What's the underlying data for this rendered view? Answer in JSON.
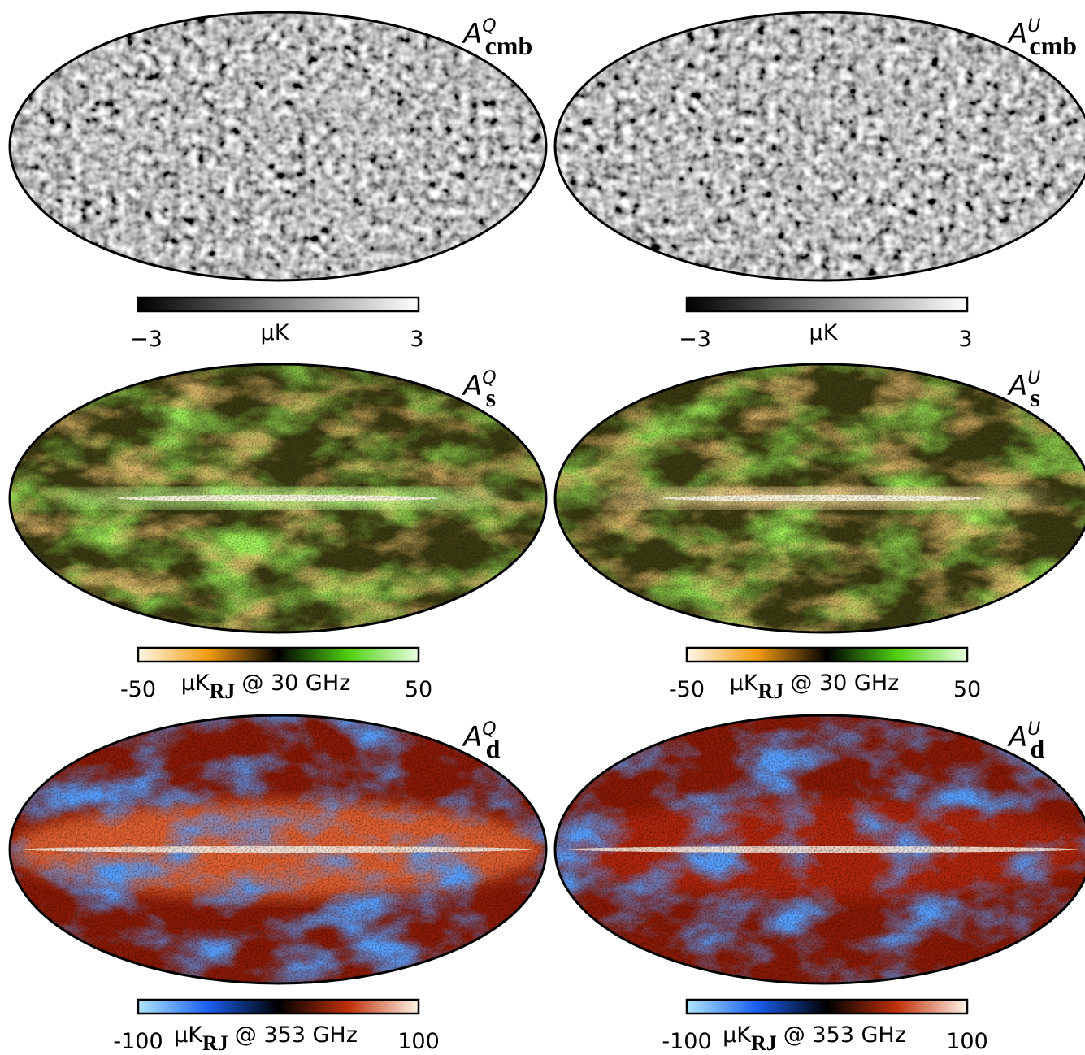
{
  "panels": [
    {
      "title": {
        "base": "A",
        "sup": "Q",
        "sub": "cmb"
      },
      "colorbar": {
        "min": "−3",
        "unit": "μK",
        "max": "3"
      }
    },
    {
      "title": {
        "base": "A",
        "sup": "U",
        "sub": "cmb"
      },
      "colorbar": {
        "min": "−3",
        "unit": "μK",
        "max": "3"
      }
    },
    {
      "title": {
        "base": "A",
        "sup": "Q",
        "sub": "s"
      },
      "colorbar": {
        "min": "-50",
        "unit": "μK",
        "unit_sub": "RJ",
        "unit_suffix": "@ 30 GHz",
        "max": "50"
      }
    },
    {
      "title": {
        "base": "A",
        "sup": "U",
        "sub": "s"
      },
      "colorbar": {
        "min": "-50",
        "unit": "μK",
        "unit_sub": "RJ",
        "unit_suffix": "@ 30 GHz",
        "max": "50"
      }
    },
    {
      "title": {
        "base": "A",
        "sup": "Q",
        "sub": "d"
      },
      "colorbar": {
        "min": "-100",
        "unit": "μK",
        "unit_sub": "RJ",
        "unit_suffix": "@ 353 GHz",
        "max": "100"
      }
    },
    {
      "title": {
        "base": "A",
        "sup": "U",
        "sub": "d"
      },
      "colorbar": {
        "min": "-100",
        "unit": "μK",
        "unit_sub": "RJ",
        "unit_suffix": "@ 353 GHz",
        "max": "100"
      }
    }
  ]
}
